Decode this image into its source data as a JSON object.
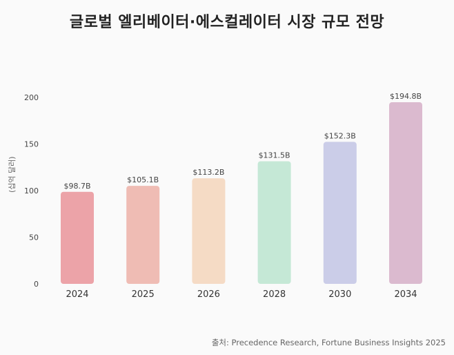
{
  "chart_data": {
    "type": "bar",
    "title": "글로벌 엘리베이터·에스컬레이터 시장 규모 전망",
    "ylabel": "(십억 달러)",
    "xlabel": "",
    "categories": [
      "2024",
      "2025",
      "2026",
      "2028",
      "2030",
      "2034"
    ],
    "values": [
      98.7,
      105.1,
      113.2,
      131.5,
      152.3,
      194.8
    ],
    "data_labels": [
      "$98.7B",
      "$105.1B",
      "$113.2B",
      "$131.5B",
      "$152.3B",
      "$194.8B"
    ],
    "ylim": [
      0,
      200
    ],
    "yticks": [
      "0",
      "50",
      "100",
      "150",
      "200"
    ],
    "grid": false,
    "bar_colors": [
      "#eca3a8",
      "#efbcb4",
      "#f5dbc5",
      "#c5e8d6",
      "#cbcde8",
      "#dbbacf"
    ],
    "source": "출처: Precedence Research, Fortune Business Insights 2025"
  }
}
